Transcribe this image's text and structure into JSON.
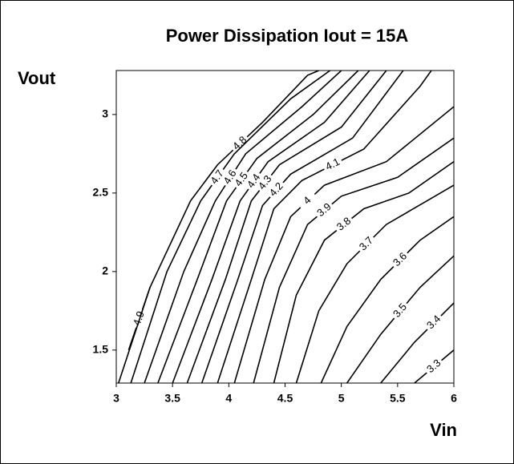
{
  "chart_data": {
    "type": "contour",
    "title": "Power Dissipation Iout = 15A",
    "x_label": "Vin",
    "y_label": "Vout",
    "xlim": [
      3,
      6
    ],
    "ylim": [
      1.29,
      3.28
    ],
    "xticks": [
      3,
      3.5,
      4,
      4.5,
      5,
      5.5,
      6
    ],
    "yticks": [
      1.5,
      2,
      2.5,
      3
    ],
    "color": "#000000",
    "contours": [
      {
        "level": 4.9,
        "x": [
          3.11,
          3.3
        ],
        "y": [
          1.5,
          1.9
        ]
      },
      {
        "level": 4.8,
        "x": [
          3.02,
          3.3,
          3.66,
          3.9,
          4.3,
          4.7,
          4.8
        ],
        "y": [
          1.29,
          1.9,
          2.45,
          2.68,
          2.95,
          3.25,
          3.28
        ]
      },
      {
        "level": 4.7,
        "x": [
          3.13,
          3.45,
          3.75,
          4.05,
          4.55,
          4.9
        ],
        "y": [
          1.29,
          2.0,
          2.45,
          2.75,
          3.1,
          3.28
        ]
      },
      {
        "level": 4.6,
        "x": [
          3.25,
          3.6,
          3.88,
          4.15,
          4.65,
          5.0
        ],
        "y": [
          1.29,
          2.0,
          2.45,
          2.75,
          3.05,
          3.28
        ]
      },
      {
        "level": 4.5,
        "x": [
          3.37,
          3.72,
          3.98,
          4.25,
          4.75,
          5.15
        ],
        "y": [
          1.29,
          1.95,
          2.45,
          2.72,
          3.0,
          3.28
        ]
      },
      {
        "level": 4.4,
        "x": [
          3.5,
          3.85,
          4.1,
          4.35,
          4.85,
          5.25
        ],
        "y": [
          1.29,
          1.95,
          2.45,
          2.7,
          2.95,
          3.28
        ]
      },
      {
        "level": 4.3,
        "x": [
          3.63,
          3.97,
          4.2,
          4.45,
          5.0,
          5.4
        ],
        "y": [
          1.29,
          1.95,
          2.45,
          2.68,
          2.92,
          3.28
        ]
      },
      {
        "level": 4.2,
        "x": [
          3.76,
          4.08,
          4.3,
          4.55,
          5.1,
          5.55
        ],
        "y": [
          1.29,
          1.95,
          2.42,
          2.62,
          2.85,
          3.28
        ]
      },
      {
        "level": 4.1,
        "x": [
          3.9,
          4.2,
          4.4,
          4.65,
          5.2,
          5.7,
          5.8
        ],
        "y": [
          1.29,
          1.95,
          2.4,
          2.58,
          2.78,
          3.18,
          3.28
        ]
      },
      {
        "level": 4,
        "x": [
          4.05,
          4.32,
          4.55,
          4.85,
          5.4,
          6.0
        ],
        "y": [
          1.29,
          1.95,
          2.35,
          2.55,
          2.7,
          3.05
        ]
      },
      {
        "level": 3.9,
        "x": [
          4.22,
          4.45,
          4.7,
          5.0,
          5.5,
          6.0
        ],
        "y": [
          1.29,
          1.9,
          2.3,
          2.48,
          2.6,
          2.85
        ]
      },
      {
        "level": 3.8,
        "x": [
          4.4,
          4.6,
          4.85,
          5.2,
          5.6,
          6.0
        ],
        "y": [
          1.29,
          1.85,
          2.2,
          2.4,
          2.5,
          2.7
        ]
      },
      {
        "level": 3.7,
        "x": [
          4.6,
          4.8,
          5.05,
          5.4,
          6.0
        ],
        "y": [
          1.29,
          1.75,
          2.05,
          2.3,
          2.55
        ]
      },
      {
        "level": 3.6,
        "x": [
          4.82,
          5.05,
          5.35,
          5.7,
          6.0
        ],
        "y": [
          1.29,
          1.65,
          1.95,
          2.2,
          2.35
        ]
      },
      {
        "level": 3.5,
        "x": [
          5.05,
          5.35,
          5.7,
          6.0
        ],
        "y": [
          1.29,
          1.6,
          1.9,
          2.1
        ]
      },
      {
        "level": 3.4,
        "x": [
          5.35,
          5.65,
          6.0
        ],
        "y": [
          1.29,
          1.55,
          1.8
        ]
      },
      {
        "level": 3.3,
        "x": [
          5.65,
          6.0
        ],
        "y": [
          1.29,
          1.5
        ]
      }
    ]
  }
}
